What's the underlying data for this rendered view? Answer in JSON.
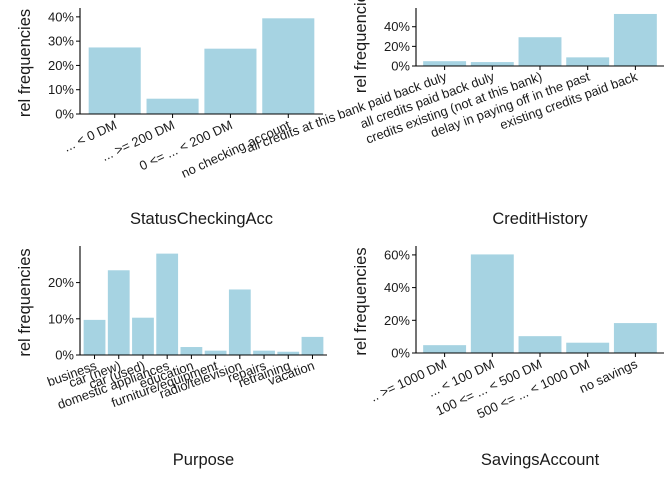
{
  "page": {
    "bar_color": "#a6d3e2",
    "axis_color": "#000000"
  },
  "chart_data": [
    {
      "type": "bar",
      "title": "",
      "xlabel": "StatusCheckingAcc",
      "ylabel": "rel frequencies",
      "ylim": [
        0,
        0.42
      ],
      "yticks": [
        0,
        0.1,
        0.2,
        0.3,
        0.4
      ],
      "ytick_labels": [
        "0%",
        "10%",
        "20%",
        "30%",
        "40%"
      ],
      "categories": [
        "... < 0 DM",
        "... >= 200 DM",
        "0 <= ... < 200 DM",
        "no checking account"
      ],
      "values": [
        0.274,
        0.063,
        0.269,
        0.394
      ]
    },
    {
      "type": "bar",
      "title": "",
      "xlabel": "CreditHistory",
      "ylabel": "rel frequencies",
      "ylim": [
        0,
        0.55
      ],
      "yticks": [
        0,
        0.2,
        0.4
      ],
      "ytick_labels": [
        "0%",
        "20%",
        "40%"
      ],
      "categories": [
        "all credits at this bank paid back duly",
        "all credits paid back duly",
        "credits existing (not at this bank)",
        "delay in paying off in the past",
        "existing credits paid back"
      ],
      "values": [
        0.049,
        0.04,
        0.293,
        0.088,
        0.53
      ]
    },
    {
      "type": "bar",
      "title": "",
      "xlabel": "Purpose",
      "ylabel": "rel frequencies",
      "ylim": [
        0,
        0.29
      ],
      "yticks": [
        0,
        0.1,
        0.2
      ],
      "ytick_labels": [
        "0%",
        "10%",
        "20%"
      ],
      "categories": [
        "business",
        "car (new)",
        "car (used)",
        "domestic appliances",
        "education",
        "furniture/equipment",
        "radio/television",
        "repairs",
        "retraining",
        "vacation"
      ],
      "values": [
        0.097,
        0.234,
        0.103,
        0.28,
        0.022,
        0.012,
        0.181,
        0.012,
        0.009,
        0.05
      ]
    },
    {
      "type": "bar",
      "title": "",
      "xlabel": "SavingsAccount",
      "ylabel": "rel frequencies",
      "ylim": [
        0,
        0.63
      ],
      "yticks": [
        0,
        0.2,
        0.4,
        0.6
      ],
      "ytick_labels": [
        "0%",
        "20%",
        "40%",
        "60%"
      ],
      "categories": [
        ".. >= 1000 DM",
        "... < 100 DM",
        "100 <= ... < 500 DM",
        "500 <= ... < 1000 DM",
        "no savings"
      ],
      "values": [
        0.048,
        0.603,
        0.103,
        0.063,
        0.183
      ]
    }
  ]
}
